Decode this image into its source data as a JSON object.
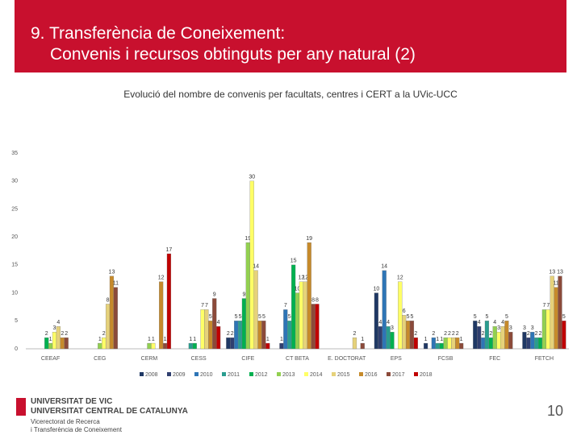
{
  "header": {
    "title_lines": [
      "9. Transferència de Coneixement:",
      "Convenis i recursos obtinguts per any natural (2)"
    ]
  },
  "chart_data": {
    "type": "bar",
    "title": "Evolució del nombre de convenis per facultats, centres i CERT a la UVic-UCC",
    "categories": [
      "CEEAF",
      "CEG",
      "CERM",
      "CESS",
      "CIFE",
      "CT BETA",
      "E. DOCTORAT",
      "EPS",
      "FCSB",
      "FEC",
      "FETCH"
    ],
    "series": [
      {
        "name": "2008",
        "color": "#1f3864",
        "values": [
          null,
          null,
          null,
          null,
          2,
          null,
          null,
          10,
          1,
          5,
          3
        ]
      },
      {
        "name": "2009",
        "color": "#2f3f6f",
        "values": [
          null,
          null,
          null,
          null,
          2,
          1,
          null,
          4,
          null,
          4,
          2
        ]
      },
      {
        "name": "2010",
        "color": "#2e75b6",
        "values": [
          null,
          null,
          null,
          null,
          5,
          7,
          null,
          14,
          2,
          2,
          3
        ]
      },
      {
        "name": "2011",
        "color": "#2a9d8f",
        "values": [
          null,
          null,
          null,
          1,
          5,
          5,
          null,
          4,
          1,
          5,
          2
        ]
      },
      {
        "name": "2012",
        "color": "#00b050",
        "values": [
          2,
          null,
          null,
          1,
          9,
          15,
          null,
          3,
          1,
          2,
          2
        ]
      },
      {
        "name": "2013",
        "color": "#92d050",
        "values": [
          1,
          1,
          1,
          null,
          19,
          10,
          null,
          null,
          2,
          4,
          7
        ]
      },
      {
        "name": "2014",
        "color": "#ffff66",
        "values": [
          3,
          2,
          1,
          7,
          30,
          12,
          null,
          12,
          2,
          3,
          7
        ]
      },
      {
        "name": "2015",
        "color": "#e6d27a",
        "values": [
          4,
          8,
          null,
          7,
          14,
          12,
          2,
          6,
          2,
          4,
          13
        ]
      },
      {
        "name": "2016",
        "color": "#c68a2b",
        "values": [
          2,
          13,
          12,
          5,
          5,
          19,
          null,
          5,
          2,
          5,
          11
        ]
      },
      {
        "name": "2017",
        "color": "#8b4a3a",
        "values": [
          2,
          11,
          1,
          9,
          5,
          8,
          1,
          5,
          1,
          3,
          13
        ]
      },
      {
        "name": "2018",
        "color": "#c00000",
        "values": [
          null,
          null,
          17,
          4,
          1,
          8,
          null,
          2,
          null,
          null,
          5
        ]
      }
    ],
    "ylim": [
      0,
      35
    ],
    "yticks": [
      0,
      5,
      10,
      15,
      20,
      25,
      30,
      35
    ],
    "grid": false
  },
  "footer": {
    "logo_lines": [
      "UNIVERSITAT DE VIC",
      "UNIVERSITAT CENTRAL DE CATALUNYA"
    ],
    "unit_lines": [
      "Vicerectorat de Recerca",
      "i Transferència de Coneixement"
    ],
    "page_number": "10"
  }
}
